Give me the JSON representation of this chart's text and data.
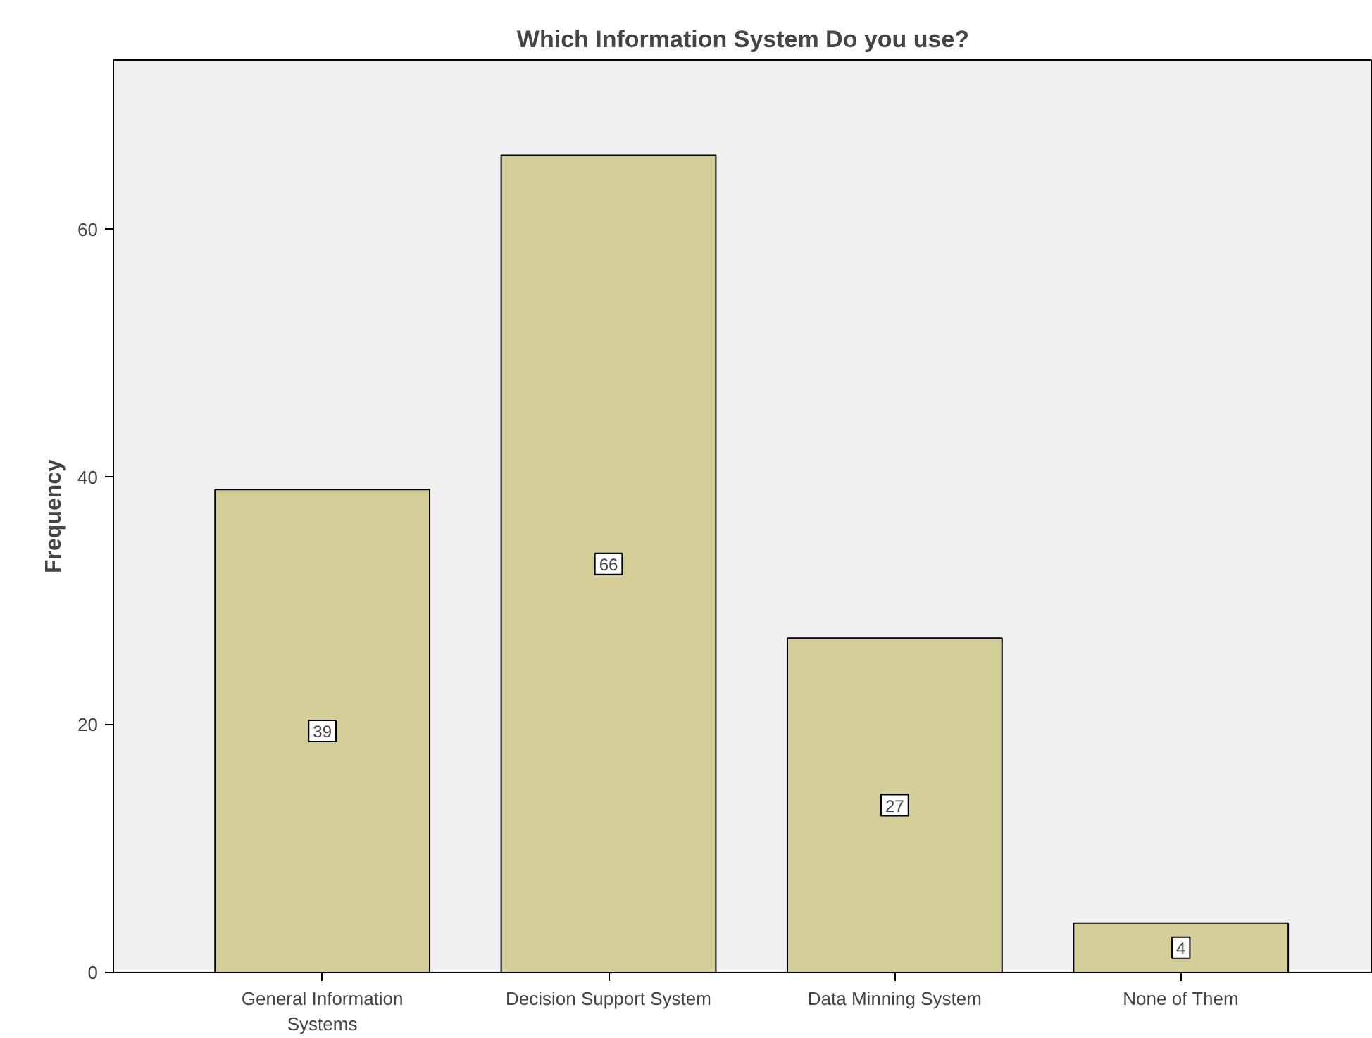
{
  "chart_data": {
    "type": "bar",
    "title": "Which Information System Do you use?",
    "ylabel": "Frequency",
    "categories": [
      "General Information Systems",
      "Decision Support System",
      "Data Minning System",
      "None of Them"
    ],
    "values": [
      39,
      66,
      27,
      4
    ],
    "color": "#d3ce97",
    "ylim": [
      0,
      73.7
    ],
    "yticks": [
      0,
      20,
      40,
      60
    ],
    "grid": false,
    "data_labels": true
  }
}
